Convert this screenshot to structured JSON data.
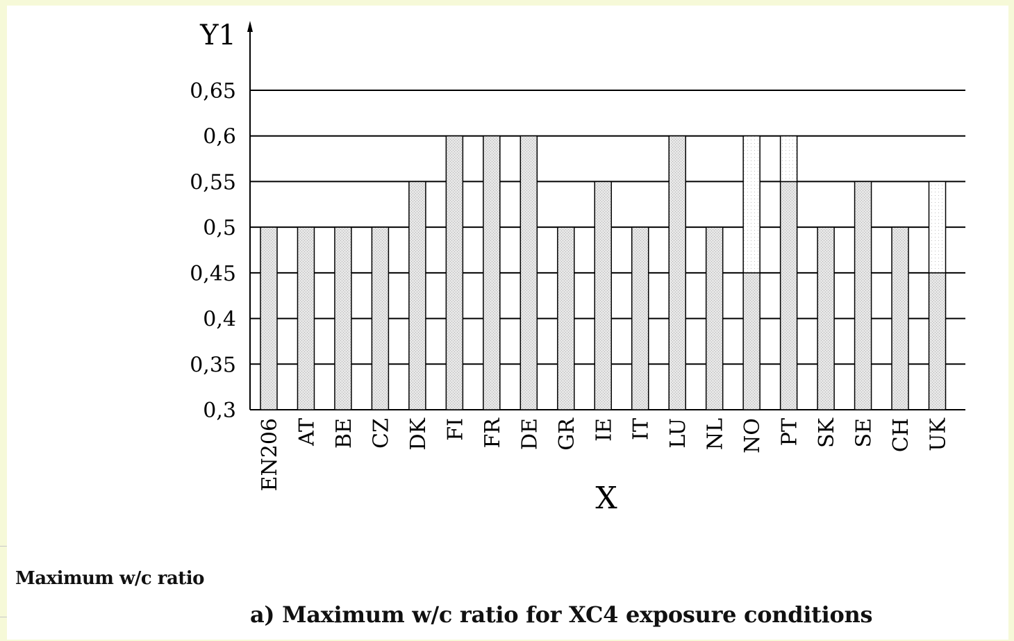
{
  "legend_note": "Maximum w/c ratio",
  "caption": "a) Maximum w/c ratio for XC4 exposure conditions",
  "chart_data": {
    "type": "bar",
    "title": "",
    "xlabel": "X",
    "ylabel": "Y1",
    "ylim": [
      0.3,
      0.65
    ],
    "yticks": [
      0.3,
      0.35,
      0.4,
      0.45,
      0.5,
      0.55,
      0.6,
      0.65
    ],
    "ytick_labels": [
      "0,3",
      "0,35",
      "0,4",
      "0,45",
      "0,5",
      "0,55",
      "0,6",
      "0,65"
    ],
    "grid": "horizontal",
    "categories": [
      "EN206",
      "AT",
      "BE",
      "CZ",
      "DK",
      "FI",
      "FR",
      "DE",
      "GR",
      "IE",
      "IT",
      "LU",
      "NL",
      "NO",
      "PT",
      "SK",
      "SE",
      "CH",
      "UK"
    ],
    "series": [
      {
        "values": [
          0.5,
          0.5,
          0.5,
          0.5,
          0.55,
          0.6,
          0.6,
          0.6,
          0.5,
          0.55,
          0.5,
          0.6,
          0.5,
          0.45,
          0.55,
          0.5,
          0.55,
          0.5,
          0.45
        ]
      },
      {
        "values": [
          0,
          0,
          0,
          0,
          0,
          0,
          0,
          0,
          0,
          0,
          0,
          0,
          0,
          0.15,
          0.05,
          0,
          0,
          0,
          0.1
        ]
      }
    ],
    "colors": {
      "bar_fill": "#e2e2e2",
      "upper_fill": "#ffffff",
      "grid": "#000000",
      "axis": "#000000"
    }
  }
}
